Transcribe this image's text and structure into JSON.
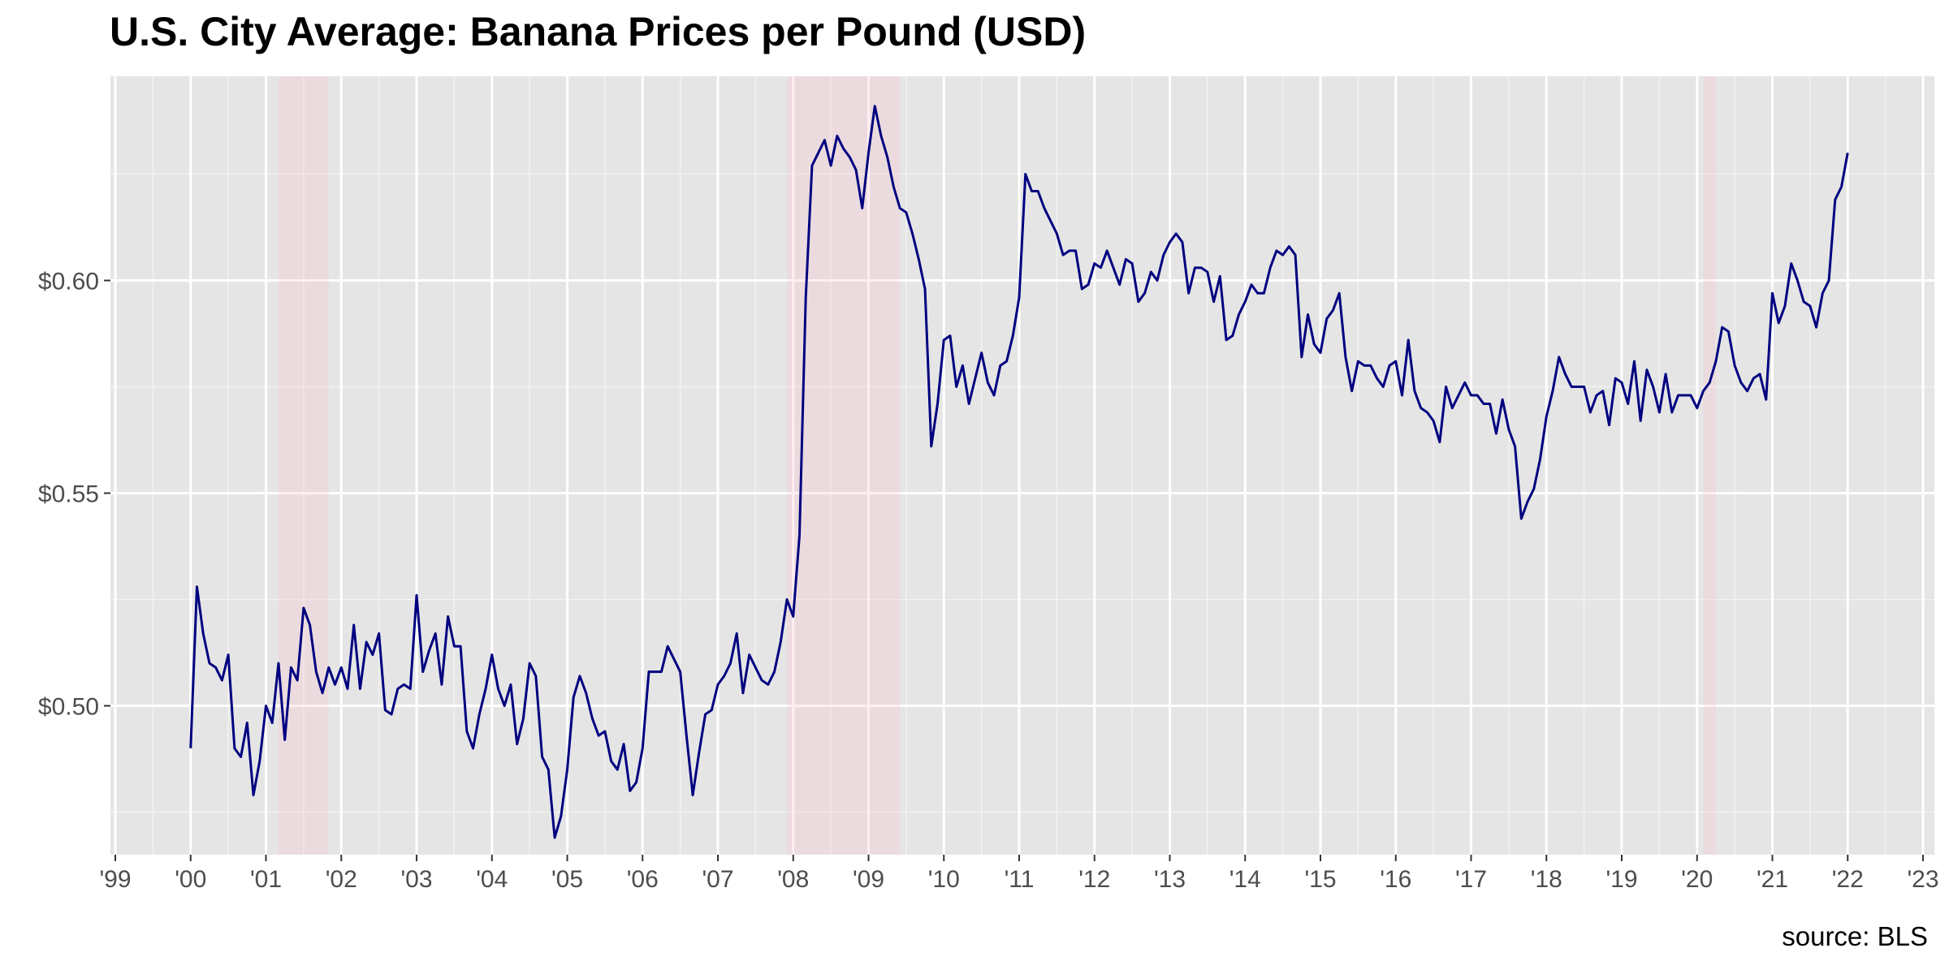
{
  "chart_data": {
    "type": "line",
    "title": "U.S. City Average: Banana Prices per Pound (USD)",
    "source": "source: BLS",
    "xlabel": "",
    "ylabel": "",
    "x_range": [
      "1999-01",
      "2023-01"
    ],
    "ylim": [
      0.465,
      0.648
    ],
    "x_ticks": [
      {
        "date": "1999-01",
        "label": "'99"
      },
      {
        "date": "2000-01",
        "label": "'00"
      },
      {
        "date": "2001-01",
        "label": "'01"
      },
      {
        "date": "2002-01",
        "label": "'02"
      },
      {
        "date": "2003-01",
        "label": "'03"
      },
      {
        "date": "2004-01",
        "label": "'04"
      },
      {
        "date": "2005-01",
        "label": "'05"
      },
      {
        "date": "2006-01",
        "label": "'06"
      },
      {
        "date": "2007-01",
        "label": "'07"
      },
      {
        "date": "2008-01",
        "label": "'08"
      },
      {
        "date": "2009-01",
        "label": "'09"
      },
      {
        "date": "2010-01",
        "label": "'10"
      },
      {
        "date": "2011-01",
        "label": "'11"
      },
      {
        "date": "2012-01",
        "label": "'12"
      },
      {
        "date": "2013-01",
        "label": "'13"
      },
      {
        "date": "2014-01",
        "label": "'14"
      },
      {
        "date": "2015-01",
        "label": "'15"
      },
      {
        "date": "2016-01",
        "label": "'16"
      },
      {
        "date": "2017-01",
        "label": "'17"
      },
      {
        "date": "2018-01",
        "label": "'18"
      },
      {
        "date": "2019-01",
        "label": "'19"
      },
      {
        "date": "2020-01",
        "label": "'20"
      },
      {
        "date": "2021-01",
        "label": "'21"
      },
      {
        "date": "2022-01",
        "label": "'22"
      },
      {
        "date": "2023-01",
        "label": "'23"
      }
    ],
    "y_ticks": [
      {
        "value": 0.5,
        "label": "$0.50"
      },
      {
        "value": 0.55,
        "label": "$0.55"
      },
      {
        "value": 0.6,
        "label": "$0.60"
      }
    ],
    "y_minor_ticks": [
      0.475,
      0.525,
      0.575,
      0.625
    ],
    "grid": true,
    "recessions": [
      {
        "start": "2001-03",
        "end": "2001-11"
      },
      {
        "start": "2007-12",
        "end": "2009-06"
      },
      {
        "start": "2020-02",
        "end": "2020-04"
      }
    ],
    "series": [
      {
        "color": "#000080",
        "start": "2000-01",
        "frequency": "monthly",
        "values": [
          0.49,
          0.528,
          0.517,
          0.51,
          0.509,
          0.506,
          0.512,
          0.49,
          0.488,
          0.496,
          0.479,
          0.487,
          0.5,
          0.496,
          0.51,
          0.492,
          0.509,
          0.506,
          0.523,
          0.519,
          0.508,
          0.503,
          0.509,
          0.505,
          0.509,
          0.504,
          0.519,
          0.504,
          0.515,
          0.512,
          0.517,
          0.499,
          0.498,
          0.504,
          0.505,
          0.504,
          0.526,
          0.508,
          0.513,
          0.517,
          0.505,
          0.521,
          0.514,
          0.514,
          0.494,
          0.49,
          0.498,
          0.504,
          0.512,
          0.504,
          0.5,
          0.505,
          0.491,
          0.497,
          0.51,
          0.507,
          0.488,
          0.485,
          0.469,
          0.474,
          0.485,
          0.502,
          0.507,
          0.503,
          0.497,
          0.493,
          0.494,
          0.487,
          0.485,
          0.491,
          0.48,
          0.482,
          0.49,
          0.508,
          0.508,
          0.508,
          0.514,
          0.511,
          0.508,
          0.493,
          0.479,
          0.489,
          0.498,
          0.499,
          0.505,
          0.507,
          0.51,
          0.517,
          0.503,
          0.512,
          0.509,
          0.506,
          0.505,
          0.508,
          0.515,
          0.525,
          0.521,
          0.54,
          0.596,
          0.627,
          0.63,
          0.633,
          0.627,
          0.634,
          0.631,
          0.629,
          0.626,
          0.617,
          0.63,
          0.641,
          0.634,
          0.629,
          0.622,
          0.617,
          0.616,
          0.611,
          0.605,
          0.598,
          0.561,
          0.571,
          0.586,
          0.587,
          0.575,
          0.58,
          0.571,
          0.577,
          0.583,
          0.576,
          0.573,
          0.58,
          0.581,
          0.587,
          0.596,
          0.625,
          0.621,
          0.621,
          0.617,
          0.614,
          0.611,
          0.606,
          0.607,
          0.607,
          0.598,
          0.599,
          0.604,
          0.603,
          0.607,
          0.603,
          0.599,
          0.605,
          0.604,
          0.595,
          0.597,
          0.602,
          0.6,
          0.606,
          0.609,
          0.611,
          0.609,
          0.597,
          0.603,
          0.603,
          0.602,
          0.595,
          0.601,
          0.586,
          0.587,
          0.592,
          0.595,
          0.599,
          0.597,
          0.597,
          0.603,
          0.607,
          0.606,
          0.608,
          0.606,
          0.582,
          0.592,
          0.585,
          0.583,
          0.591,
          0.593,
          0.597,
          0.582,
          0.574,
          0.581,
          0.58,
          0.58,
          0.577,
          0.575,
          0.58,
          0.581,
          0.573,
          0.586,
          0.574,
          0.57,
          0.569,
          0.567,
          0.562,
          0.575,
          0.57,
          0.573,
          0.576,
          0.573,
          0.573,
          0.571,
          0.571,
          0.564,
          0.572,
          0.565,
          0.561,
          0.544,
          0.548,
          0.551,
          0.558,
          0.568,
          0.574,
          0.582,
          0.578,
          0.575,
          0.575,
          0.575,
          0.569,
          0.573,
          0.574,
          0.566,
          0.577,
          0.576,
          0.571,
          0.581,
          0.567,
          0.579,
          0.575,
          0.569,
          0.578,
          0.569,
          0.573,
          0.573,
          0.573,
          0.57,
          0.574,
          0.576,
          0.581,
          0.589,
          0.588,
          0.58,
          0.576,
          0.574,
          0.577,
          0.578,
          0.572,
          0.597,
          0.59,
          0.594,
          0.604,
          0.6,
          0.595,
          0.594,
          0.589,
          0.597,
          0.6,
          0.619,
          0.622,
          0.63
        ]
      }
    ]
  },
  "colors": {
    "panel_background": "#e5e5e5",
    "grid_major": "#ffffff",
    "line": "#000080",
    "recession_shade": "#ffc0cb"
  }
}
